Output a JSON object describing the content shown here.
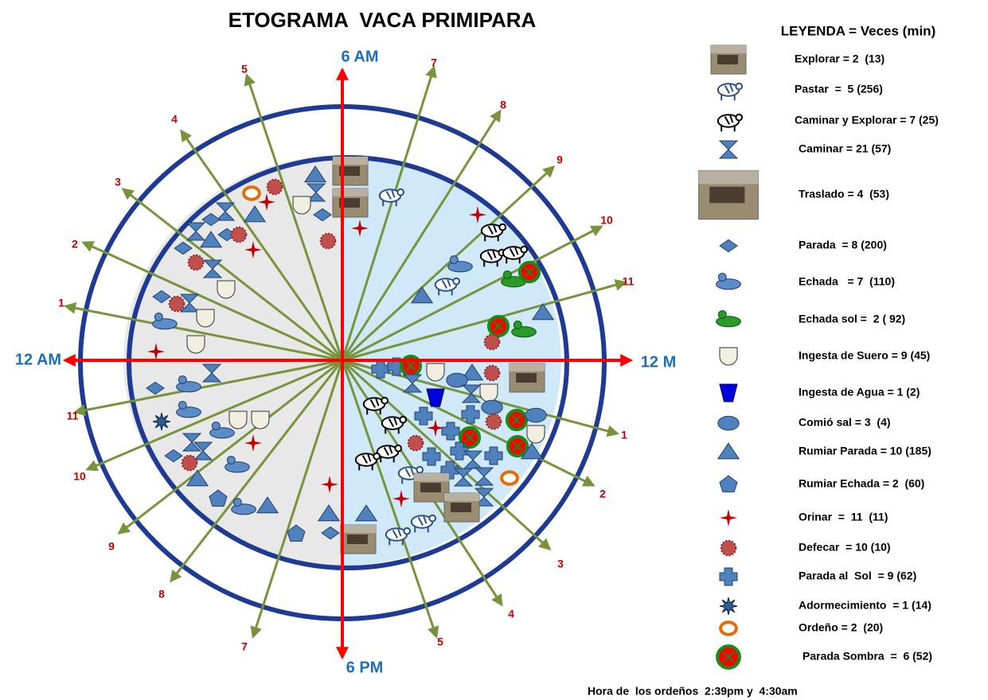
{
  "title": "ETOGRAMA  VACA PRIMIPARA",
  "axes": {
    "top": "6 AM",
    "right": "12 M",
    "bottom": "6 PM",
    "left": "12 AM"
  },
  "rays": [
    "7",
    "8",
    "9",
    "10",
    "11",
    "1",
    "2",
    "3",
    "4",
    "5",
    "5",
    "4",
    "3",
    "2",
    "1",
    "11",
    "10",
    "9",
    "8",
    "7"
  ],
  "legend": {
    "title": "LEYENDA = Veces (min)",
    "items": [
      "Explorar = 2  (13)",
      "Pastar  =  5 (256)",
      "Caminar y Explorar = 7 (25)",
      "Caminar = 21 (57)",
      "Traslado = 4  (53)",
      "Parada  = 8 (200)",
      "Echada   = 7  (110)",
      "Echada sol =  2 ( 92)",
      "Ingesta de Suero = 9 (45)",
      "Ingesta de Agua = 1 (2)",
      "Comió sal = 3  (4)",
      "Rumiar Parada = 10 (185)",
      "Rumiar Echada = 2  (60)",
      "Orinar  =  11  (11)",
      "Defecar  = 10 (10)",
      "Parada al  Sol  = 9 (62)",
      "Adormecimiento  = 1 (14)",
      "Ordeño = 2  (20)",
      "Parada Sombra  =  6 (52)"
    ]
  },
  "note": "Hora de  los ordeños  2:39pm y  4:30am"
}
